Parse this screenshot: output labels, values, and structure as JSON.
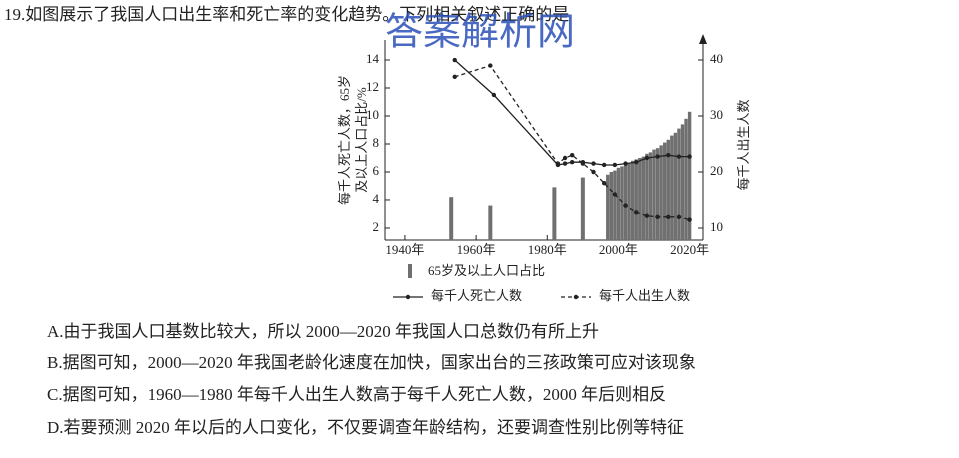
{
  "question": {
    "stem": "19.如图展示了我国人口出生率和死亡率的变化趋势。下列相关叙述正确的是",
    "options": [
      "A.由于我国人口基数比较大，所以 2000—2020 年我国人口总数仍有所上升",
      "B.据图可知，2000—2020 年我国老龄化速度在加快，国家出台的三孩政策可应对该现象",
      "C.据图可知，1960—1980 年每千人出生人数高于每千人死亡人数，2000 年后则相反",
      "D.若要预测 2020 年以后的人口变化，不仅要调查年龄结构，还要调查性别比例等特征"
    ]
  },
  "watermark": "答案解析网",
  "chart_data": {
    "type": "combo",
    "ylabel": [
      "每千人死亡人数，65岁",
      "及以上人口占比/%"
    ],
    "y2label": "每千人出生人数",
    "xlim": [
      1934.4,
      2023.2
    ],
    "xticks": [
      {
        "value": 1940,
        "label": "1940年"
      },
      {
        "value": 1960,
        "label": "1960年"
      },
      {
        "value": 1980,
        "label": "1980年"
      },
      {
        "value": 2000,
        "label": "2000年"
      },
      {
        "value": 2020,
        "label": "2020年"
      }
    ],
    "ylim": [
      1.14,
      15.43
    ],
    "yticks": [
      2,
      4,
      6,
      8,
      10,
      12,
      14
    ],
    "y2lim": [
      7.86,
      43.57
    ],
    "y2ticks": [
      10,
      20,
      30,
      40
    ],
    "series": [
      {
        "name": "65岁及以上人口占比",
        "type": "bar",
        "color": "#707070",
        "x": [
          1953,
          1964,
          1982,
          1990,
          1997,
          1998,
          1999,
          2000,
          2001,
          2002,
          2003,
          2004,
          2005,
          2006,
          2007,
          2008,
          2009,
          2010,
          2011,
          2012,
          2013,
          2014,
          2015,
          2016,
          2017,
          2018,
          2019,
          2020
        ],
        "values": [
          4.2,
          3.6,
          4.9,
          5.6,
          5.8,
          6.0,
          6.1,
          6.3,
          6.4,
          6.5,
          6.6,
          6.8,
          6.9,
          7.0,
          7.1,
          7.3,
          7.4,
          7.6,
          7.7,
          7.9,
          8.1,
          8.3,
          8.6,
          8.8,
          9.1,
          9.4,
          9.8,
          10.3
        ]
      },
      {
        "name": "每千人死亡人数",
        "type": "line",
        "color": "#222222",
        "dashed": false,
        "x": [
          1954,
          1965,
          1983,
          1985,
          1987,
          1990,
          1993,
          1996,
          1999,
          2002,
          2005,
          2008,
          2011,
          2014,
          2017,
          2020
        ],
        "values": [
          14,
          11.5,
          6.5,
          6.6,
          6.7,
          6.7,
          6.6,
          6.5,
          6.5,
          6.6,
          6.7,
          7.0,
          7.1,
          7.2,
          7.1,
          7.1
        ]
      },
      {
        "name": "每千人出生人数",
        "type": "line",
        "color": "#222222",
        "dashed": true,
        "axis": "y2",
        "x": [
          1954,
          1964,
          1983,
          1985,
          1987,
          1990,
          1993,
          1996,
          1999,
          2002,
          2005,
          2008,
          2011,
          2014,
          2017,
          2020
        ],
        "values": [
          37,
          39,
          21.5,
          22.5,
          23,
          21.5,
          20,
          18,
          16,
          14,
          12.8,
          12.2,
          12,
          12,
          12,
          11.5
        ]
      }
    ]
  }
}
